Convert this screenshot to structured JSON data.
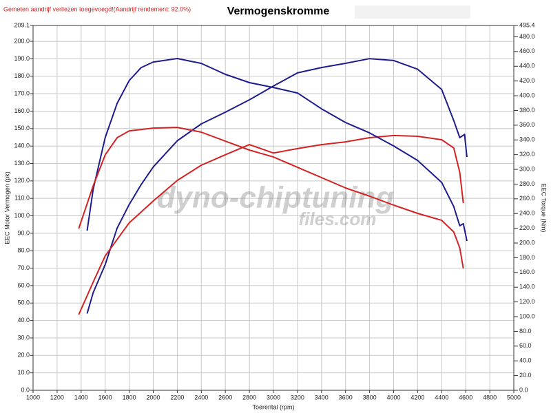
{
  "chart_data": {
    "type": "line",
    "title": "Vermogenskromme",
    "note": "Gemeten aandrijf verliezen toegevoegd!(Aandrijf rendement: 92.0%)",
    "xlabel": "Toerental (rpm)",
    "ylabel": "EEC Motor Vermogen (pk)",
    "y2label": "EEC Torque (Nm)",
    "watermark": [
      "dyno-chiptuning",
      "files.com"
    ],
    "grid": true,
    "xlim": [
      1000,
      5000
    ],
    "xticks": [
      1000,
      1200,
      1400,
      1600,
      1800,
      2000,
      2200,
      2400,
      2600,
      2800,
      3000,
      3200,
      3400,
      3600,
      3800,
      4000,
      4200,
      4400,
      4600,
      4800,
      5000
    ],
    "ylim": [
      0,
      209.1
    ],
    "yticks": [
      {
        "value": 0,
        "label": "0.0"
      },
      {
        "value": 10,
        "label": "10.0"
      },
      {
        "value": 20,
        "label": "20.0"
      },
      {
        "value": 30,
        "label": "30.0"
      },
      {
        "value": 40,
        "label": "40.0"
      },
      {
        "value": 50,
        "label": "50.0"
      },
      {
        "value": 60,
        "label": "60.0"
      },
      {
        "value": 70,
        "label": "70.0"
      },
      {
        "value": 80,
        "label": "80.0"
      },
      {
        "value": 90,
        "label": "90.0"
      },
      {
        "value": 100,
        "label": "100.0"
      },
      {
        "value": 110,
        "label": "110.0"
      },
      {
        "value": 120,
        "label": "120.0"
      },
      {
        "value": 130,
        "label": "130.0"
      },
      {
        "value": 140,
        "label": "140.0"
      },
      {
        "value": 150,
        "label": "150.0"
      },
      {
        "value": 160,
        "label": "160.0"
      },
      {
        "value": 170,
        "label": "170.0"
      },
      {
        "value": 180,
        "label": "180.0"
      },
      {
        "value": 190,
        "label": "190.0"
      },
      {
        "value": 200,
        "label": "200.0"
      },
      209.1
    ],
    "y2lim": [
      0,
      495.4
    ],
    "y2ticks": [
      {
        "value": 0,
        "label": "0.0"
      },
      {
        "value": 20,
        "label": "20.0"
      },
      {
        "value": 40,
        "label": "40.0"
      },
      {
        "value": 60,
        "label": "60.0"
      },
      {
        "value": 80,
        "label": "80.0"
      },
      {
        "value": 100,
        "label": "100.0"
      },
      {
        "value": 120,
        "label": "120.0"
      },
      {
        "value": 140,
        "label": "140.0"
      },
      {
        "value": 160,
        "label": "160.0"
      },
      {
        "value": 180,
        "label": "180.0"
      },
      {
        "value": 200,
        "label": "200.0"
      },
      {
        "value": 220,
        "label": "220.0"
      },
      {
        "value": 240,
        "label": "240.0"
      },
      {
        "value": 260,
        "label": "260.0"
      },
      {
        "value": 280,
        "label": "280.0"
      },
      {
        "value": 300,
        "label": "300.0"
      },
      {
        "value": 320,
        "label": "320.0"
      },
      {
        "value": 340,
        "label": "340.0"
      },
      {
        "value": 360,
        "label": "360.0"
      },
      {
        "value": 380,
        "label": "380.0"
      },
      {
        "value": 400,
        "label": "400.0"
      },
      {
        "value": 420,
        "label": "420.0"
      },
      {
        "value": 440,
        "label": "440.0"
      },
      {
        "value": 460,
        "label": "460.0"
      },
      {
        "value": 480,
        "label": "480.0"
      },
      495.4
    ],
    "series": [
      {
        "color": "#1c1c8e",
        "axis": "y",
        "x": [
          1450,
          1500,
          1600,
          1700,
          1800,
          1900,
          2000,
          2200,
          2400,
          2600,
          2800,
          3000,
          3200,
          3400,
          3600,
          3800,
          4000,
          4200,
          4400,
          4500,
          4550,
          4590,
          4610
        ],
        "values": [
          44,
          56,
          72,
          93,
          106.5,
          118,
          128,
          143,
          152.7,
          159.4,
          166.5,
          174.4,
          181.9,
          185,
          187.4,
          190.1,
          189,
          184,
          172.4,
          154.6,
          144.8,
          146.7,
          133.7
        ]
      },
      {
        "color": "#d42222",
        "axis": "y",
        "x": [
          1380,
          1500,
          1600,
          1800,
          2000,
          2200,
          2400,
          2600,
          2800,
          3000,
          3200,
          3400,
          3600,
          3800,
          4000,
          4200,
          4400,
          4500,
          4550,
          4580
        ],
        "values": [
          43.4,
          62,
          77,
          96,
          108.5,
          120.3,
          129,
          135,
          140.8,
          136,
          138.5,
          140.8,
          142.4,
          144.8,
          146,
          145.6,
          143.6,
          138.9,
          125,
          107.3
        ]
      },
      {
        "color": "#1c1c8e",
        "axis": "y2",
        "x": [
          1450,
          1500,
          1600,
          1700,
          1800,
          1900,
          2000,
          2200,
          2400,
          2600,
          2800,
          3000,
          3200,
          3400,
          3600,
          3800,
          4000,
          4200,
          4400,
          4500,
          4550,
          4580,
          4610
        ],
        "values": [
          216.8,
          272.9,
          343,
          389.7,
          420.6,
          438.3,
          445.8,
          450.5,
          443.9,
          429,
          417.8,
          411.2,
          403.7,
          382.2,
          363.6,
          349.5,
          331.8,
          312.1,
          282.2,
          249.5,
          223.4,
          226.2,
          202.8
        ]
      },
      {
        "color": "#d42222",
        "axis": "y2",
        "x": [
          1380,
          1500,
          1600,
          1700,
          1800,
          2000,
          2200,
          2400,
          2600,
          2800,
          3000,
          3200,
          3400,
          3600,
          3800,
          4000,
          4200,
          4400,
          4500,
          4550,
          4580
        ],
        "values": [
          219.6,
          277.6,
          319.6,
          343,
          352.3,
          356,
          357,
          350.5,
          338.3,
          326.2,
          316.8,
          302.8,
          288.8,
          274.8,
          263.6,
          251.4,
          240.2,
          230.8,
          215,
          193.5,
          165.4
        ]
      }
    ]
  }
}
